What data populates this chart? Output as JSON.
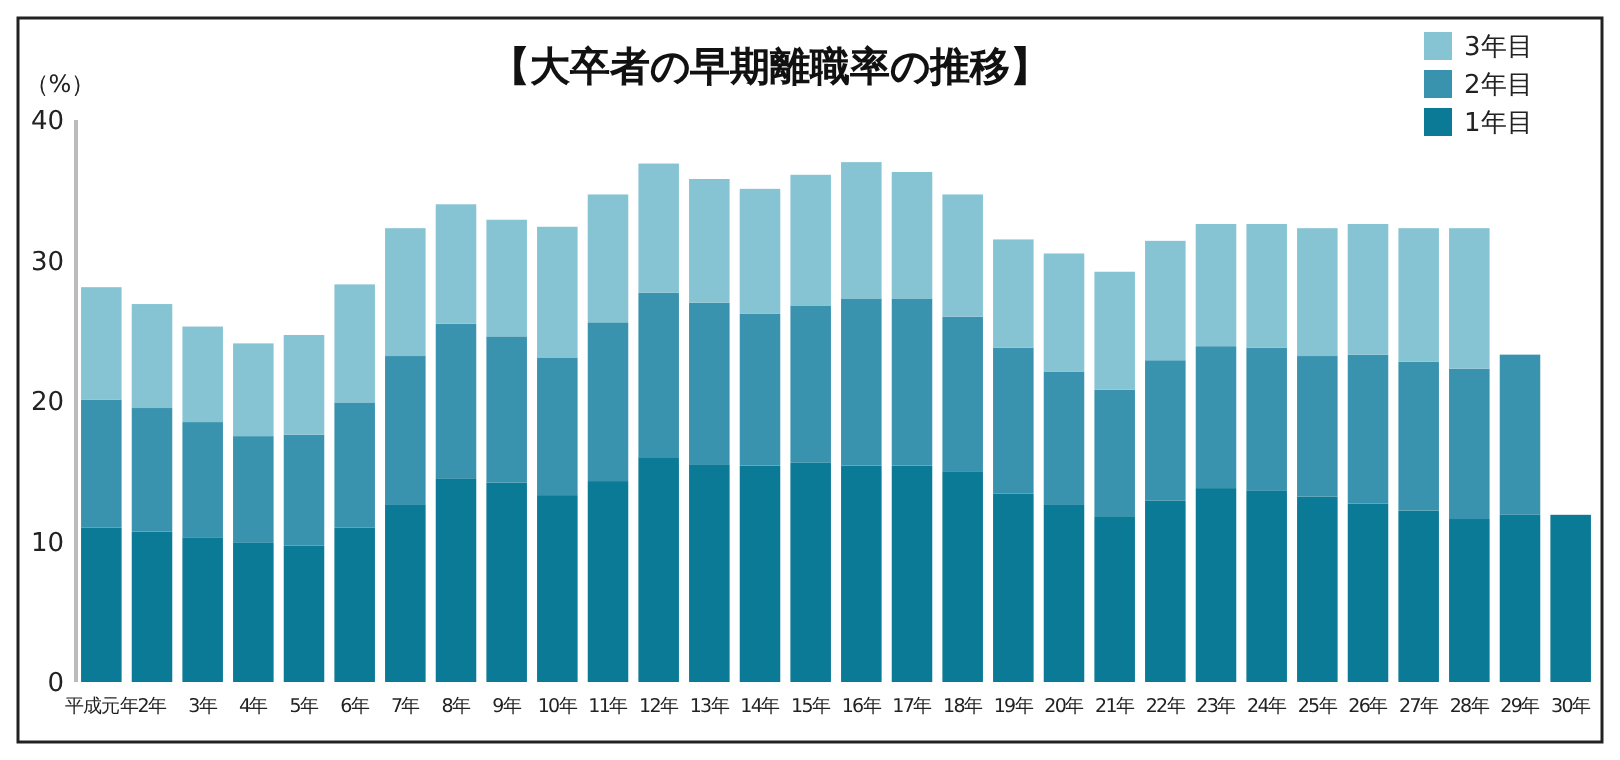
{
  "chart_data": {
    "type": "bar",
    "title": "【大卒者の早期離職率の推移】",
    "ylabel": "（%）",
    "stacked": true,
    "legend": "top right",
    "grid": false,
    "categories": [
      "平成元年",
      "2年",
      "3年",
      "4年",
      "5年",
      "6年",
      "7年",
      "8年",
      "9年",
      "10年",
      "11年",
      "12年",
      "13年",
      "14年",
      "15年",
      "16年",
      "17年",
      "18年",
      "19年",
      "20年",
      "21年",
      "22年",
      "23年",
      "24年",
      "25年",
      "26年",
      "27年",
      "28年",
      "29年",
      "30年"
    ],
    "ylim": [
      0,
      40
    ],
    "yticks": [
      0,
      10,
      20,
      30,
      40
    ],
    "series": [
      {
        "name": "1年目",
        "color": "#0b7a96",
        "values": [
          11.0,
          10.7,
          10.3,
          9.9,
          9.7,
          11.0,
          12.6,
          14.5,
          14.2,
          13.3,
          14.3,
          16.0,
          15.5,
          15.4,
          15.6,
          15.4,
          15.4,
          15.0,
          13.4,
          12.6,
          11.8,
          12.9,
          13.8,
          13.6,
          13.2,
          12.7,
          12.2,
          11.6,
          11.9,
          11.9
        ]
      },
      {
        "name": "2年目",
        "color": "#3a93ae",
        "values": [
          9.1,
          8.8,
          8.2,
          7.6,
          7.9,
          8.9,
          10.6,
          11.0,
          10.4,
          9.8,
          11.3,
          11.7,
          11.5,
          10.8,
          11.2,
          11.9,
          11.9,
          11.0,
          10.4,
          9.5,
          9.0,
          10.0,
          10.1,
          10.2,
          10.0,
          10.6,
          10.6,
          10.7,
          11.4,
          null
        ]
      },
      {
        "name": "3年目",
        "color": "#86c3d3",
        "values": [
          8.0,
          7.4,
          6.8,
          6.6,
          7.1,
          8.4,
          9.1,
          8.5,
          8.3,
          9.3,
          9.1,
          9.2,
          8.8,
          8.9,
          9.3,
          9.7,
          9.0,
          8.7,
          7.7,
          8.4,
          8.4,
          8.5,
          8.7,
          8.8,
          9.1,
          9.3,
          9.5,
          10.0,
          null,
          null
        ]
      }
    ]
  }
}
